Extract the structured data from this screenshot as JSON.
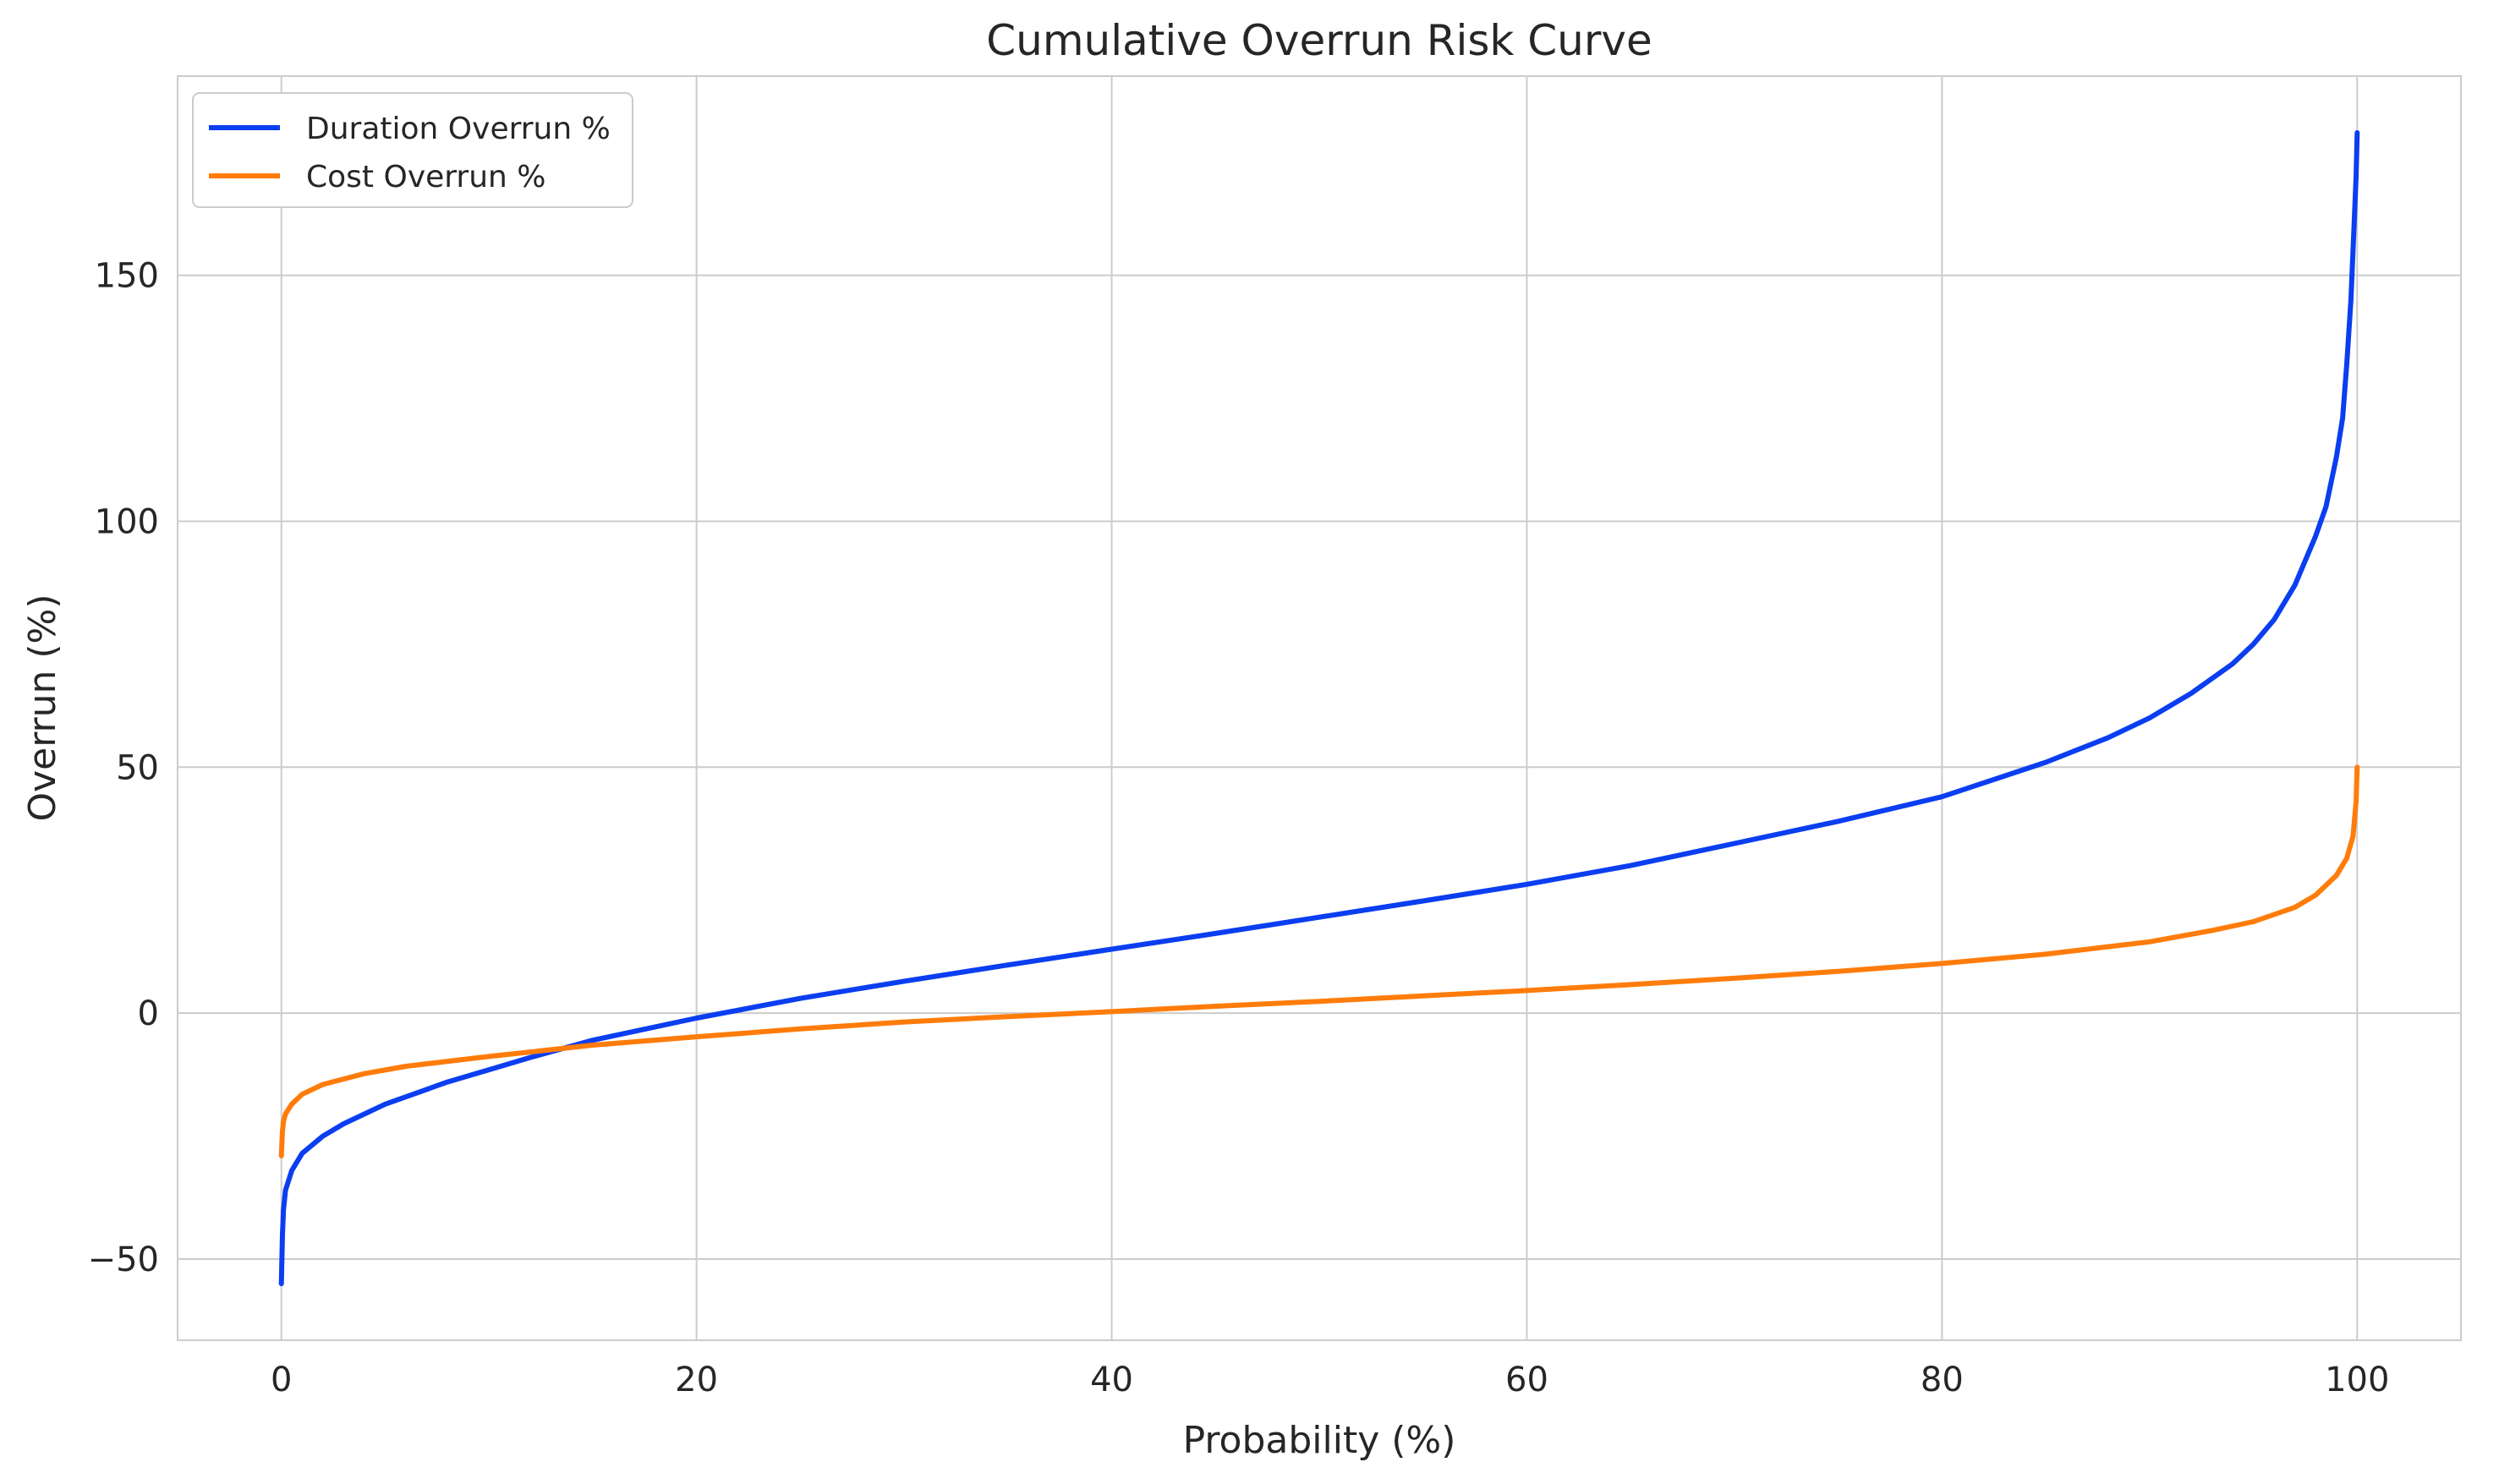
{
  "chart_data": {
    "type": "line",
    "title": "Cumulative Overrun Risk Curve",
    "xlabel": "Probability (%)",
    "ylabel": "Overrun (%)",
    "xlim": [
      -5,
      105
    ],
    "ylim": [
      -66.5,
      190.5
    ],
    "xticks": [
      0,
      20,
      40,
      60,
      80,
      100
    ],
    "yticks": [
      -50,
      0,
      50,
      100,
      150
    ],
    "grid": true,
    "legend_position": "top-left",
    "series": [
      {
        "name": "Duration Overrun %",
        "color": "#0a3ef0",
        "x": [
          0,
          0.05,
          0.1,
          0.2,
          0.5,
          1,
          2,
          3,
          5,
          8,
          10,
          12,
          15,
          20,
          25,
          30,
          35,
          40,
          45,
          50,
          55,
          60,
          65,
          70,
          75,
          80,
          85,
          88,
          90,
          92,
          94,
          95,
          96,
          97,
          98,
          98.5,
          99,
          99.3,
          99.5,
          99.7,
          99.85,
          99.95,
          100
        ],
        "y": [
          -55,
          -45,
          -40,
          -36,
          -32,
          -28.5,
          -25,
          -22.5,
          -18.5,
          -14,
          -11.5,
          -9,
          -5.5,
          -1,
          3,
          6.5,
          9.8,
          13,
          16.2,
          19.5,
          22.8,
          26.2,
          30,
          34.5,
          39,
          44,
          51,
          56,
          60,
          65,
          71,
          75,
          80,
          87,
          97,
          103,
          113,
          121,
          132,
          145,
          160,
          170,
          179
        ]
      },
      {
        "name": "Cost Overrun %",
        "color": "#ff7c0a",
        "x": [
          0,
          0.05,
          0.1,
          0.2,
          0.5,
          1,
          2,
          4,
          6,
          10,
          15,
          20,
          25,
          30,
          35,
          40,
          45,
          50,
          55,
          60,
          65,
          70,
          75,
          80,
          85,
          90,
          93,
          95,
          97,
          98,
          99,
          99.5,
          99.8,
          99.95,
          100
        ],
        "y": [
          -29,
          -24,
          -22,
          -20.5,
          -18.5,
          -16.5,
          -14.5,
          -12.3,
          -10.8,
          -8.8,
          -6.5,
          -4.8,
          -3.2,
          -1.8,
          -0.7,
          0.3,
          1.4,
          2.4,
          3.5,
          4.6,
          5.8,
          7.1,
          8.5,
          10.1,
          12,
          14.5,
          16.8,
          18.6,
          21.5,
          24,
          28,
          31.5,
          36,
          43,
          50
        ]
      }
    ]
  }
}
